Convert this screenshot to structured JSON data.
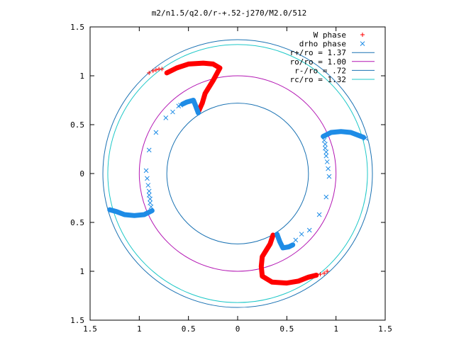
{
  "chart_data": {
    "type": "scatter",
    "title": "m2/n1.5/q2.0/r-+.52-j270/M2.0/512",
    "xlabel": "",
    "ylabel": "",
    "xlim": [
      -1.5,
      1.5
    ],
    "ylim": [
      -1.5,
      1.5
    ],
    "x_ticks": [
      -1.5,
      -1,
      -0.5,
      0,
      0.5,
      1,
      1.5
    ],
    "y_ticks": [
      -1.5,
      -1,
      -0.5,
      0,
      0.5,
      1,
      1.5
    ],
    "x_tick_labels": [
      "1.5",
      "1",
      "0.5",
      "0",
      "0.5",
      "1",
      "1.5"
    ],
    "y_tick_labels": [
      "1.5",
      "1",
      "0.5",
      "0",
      "0.5",
      "1",
      "1.5"
    ],
    "grid": false,
    "legend_position": "top-right",
    "circles": [
      {
        "label": "r+/ro = 1.37",
        "radius": 1.37,
        "color": "#1a72b3"
      },
      {
        "label": "ro/ro = 1.00",
        "radius": 1.0,
        "color": "#b316b3"
      },
      {
        "label": "r-/ro = .72",
        "radius": 0.72,
        "color": "#1a72b3"
      },
      {
        "label": "rc/ro = 1.32",
        "radius": 1.32,
        "color": "#1ec8c8"
      }
    ],
    "series": [
      {
        "name": "W phase",
        "marker": "plus",
        "color": "#ff0000",
        "dense_arms": [
          [
            [
              -0.72,
              1.03
            ],
            [
              -0.62,
              1.08
            ],
            [
              -0.5,
              1.12
            ],
            [
              -0.35,
              1.13
            ],
            [
              -0.25,
              1.12
            ],
            [
              -0.18,
              1.08
            ],
            [
              -0.25,
              0.95
            ],
            [
              -0.33,
              0.82
            ],
            [
              -0.36,
              0.72
            ],
            [
              -0.4,
              0.63
            ]
          ],
          [
            [
              0.36,
              -0.63
            ],
            [
              0.33,
              -0.72
            ],
            [
              0.25,
              -0.85
            ],
            [
              0.24,
              -0.95
            ],
            [
              0.25,
              -1.05
            ],
            [
              0.35,
              -1.11
            ],
            [
              0.5,
              -1.12
            ],
            [
              0.62,
              -1.1
            ],
            [
              0.72,
              -1.06
            ],
            [
              0.8,
              -1.04
            ]
          ]
        ],
        "points": [
          [
            -0.9,
            1.03
          ],
          [
            -0.86,
            1.05
          ],
          [
            -0.83,
            1.06
          ],
          [
            -0.8,
            1.07
          ],
          [
            -0.77,
            1.07
          ],
          [
            0.84,
            -1.03
          ],
          [
            0.88,
            -1.02
          ],
          [
            0.91,
            -1.0
          ]
        ]
      },
      {
        "name": "drho phase",
        "marker": "cross",
        "color": "#1e8ce6",
        "dense_arms": [
          [
            [
              0.87,
              0.38
            ],
            [
              0.95,
              0.42
            ],
            [
              1.05,
              0.43
            ],
            [
              1.15,
              0.42
            ],
            [
              1.23,
              0.39
            ],
            [
              1.28,
              0.37
            ]
          ],
          [
            [
              -0.87,
              -0.38
            ],
            [
              -0.95,
              -0.42
            ],
            [
              -1.05,
              -0.43
            ],
            [
              -1.15,
              -0.42
            ],
            [
              -1.23,
              -0.39
            ],
            [
              -1.3,
              -0.37
            ]
          ],
          [
            [
              -0.4,
              0.62
            ],
            [
              -0.43,
              0.7
            ],
            [
              -0.45,
              0.75
            ],
            [
              -0.52,
              0.73
            ],
            [
              -0.56,
              0.71
            ]
          ],
          [
            [
              0.4,
              -0.62
            ],
            [
              0.43,
              -0.7
            ],
            [
              0.46,
              -0.76
            ],
            [
              0.52,
              -0.75
            ],
            [
              0.56,
              -0.73
            ]
          ]
        ],
        "points": [
          [
            0.88,
            0.34
          ],
          [
            0.89,
            0.3
          ],
          [
            0.89,
            0.26
          ],
          [
            0.9,
            0.22
          ],
          [
            0.9,
            0.18
          ],
          [
            0.91,
            0.12
          ],
          [
            0.92,
            0.05
          ],
          [
            0.93,
            -0.03
          ],
          [
            0.9,
            -0.24
          ],
          [
            0.83,
            -0.42
          ],
          [
            0.73,
            -0.58
          ],
          [
            0.65,
            -0.62
          ],
          [
            0.59,
            -0.68
          ],
          [
            1.3,
            0.36
          ],
          [
            -0.88,
            -0.34
          ],
          [
            -0.89,
            -0.3
          ],
          [
            -0.89,
            -0.26
          ],
          [
            -0.9,
            -0.22
          ],
          [
            -0.9,
            -0.18
          ],
          [
            -0.91,
            -0.12
          ],
          [
            -0.92,
            -0.05
          ],
          [
            -0.93,
            0.03
          ],
          [
            -0.9,
            0.24
          ],
          [
            -0.83,
            0.42
          ],
          [
            -0.73,
            0.57
          ],
          [
            -0.66,
            0.63
          ],
          [
            -0.6,
            0.69
          ],
          [
            -0.58,
            0.7
          ]
        ]
      }
    ]
  }
}
